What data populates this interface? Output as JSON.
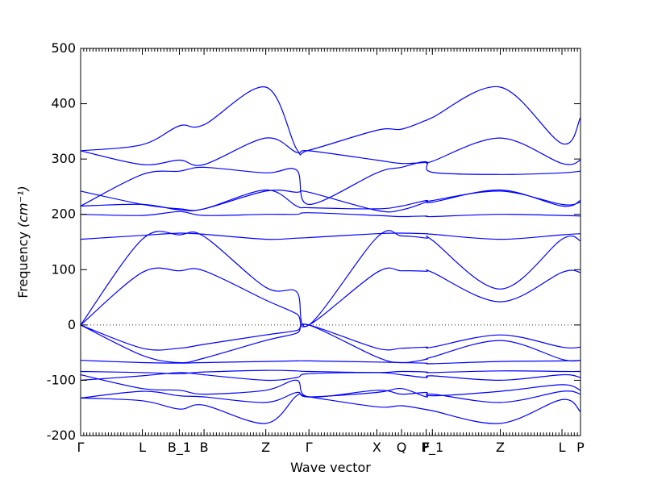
{
  "chart_data": {
    "type": "line",
    "title": "",
    "xlabel": "Wave vector",
    "ylabel": "Frequency",
    "ylabel_unit": "(cm⁻¹)",
    "ylim": [
      -200,
      500
    ],
    "yticks": [
      -200,
      -100,
      0,
      100,
      200,
      300,
      400,
      500
    ],
    "zero_line": true,
    "legend": "none",
    "line_color": "#0000ff",
    "high_symmetry_points": [
      {
        "label": "Γ",
        "pos": 0
      },
      {
        "label": "L",
        "pos": 1
      },
      {
        "label": "B_1",
        "pos": 1.6
      },
      {
        "label": "B",
        "pos": 2
      },
      {
        "label": "Z",
        "pos": 3
      },
      {
        "label": "Γ",
        "pos": 3.7
      },
      {
        "label": "X",
        "pos": 4.8
      },
      {
        "label": "Q",
        "pos": 5.2
      },
      {
        "label": "F",
        "pos": 5.6
      },
      {
        "label": "P_1",
        "pos": 5.7
      },
      {
        "label": "Z",
        "pos": 6.8
      },
      {
        "label": "L",
        "pos": 7.8
      },
      {
        "label": "P",
        "pos": 8.1
      }
    ],
    "x_range": [
      0,
      8.1
    ],
    "series": [
      {
        "x": [
          0,
          1,
          1.6,
          2,
          3,
          3.5,
          3.7,
          4.8,
          5.2,
          5.6,
          5.7,
          6.8,
          7.8,
          8.1
        ],
        "values": [
          -132,
          -137,
          -152,
          -145,
          -178,
          -128,
          -130,
          -148,
          -146,
          -153,
          -155,
          -178,
          -135,
          -157
        ]
      },
      {
        "x": [
          0,
          1,
          1.6,
          2,
          3,
          3.5,
          3.7,
          4.8,
          5.2,
          5.6,
          5.7,
          6.8,
          7.8,
          8.1
        ],
        "values": [
          -132,
          -120,
          -128,
          -130,
          -140,
          -122,
          -130,
          -122,
          -115,
          -130,
          -125,
          -140,
          -120,
          -125
        ]
      },
      {
        "x": [
          0,
          1,
          1.6,
          2,
          3,
          3.5,
          3.7,
          4.8,
          5.2,
          5.6,
          5.7,
          6.8,
          7.8,
          8.1
        ],
        "values": [
          -90,
          -115,
          -118,
          -125,
          -118,
          -100,
          -130,
          -118,
          -125,
          -122,
          -128,
          -120,
          -108,
          -118
        ]
      },
      {
        "x": [
          0,
          1,
          1.6,
          2,
          3,
          3.5,
          3.7,
          4.8,
          5.2,
          5.6,
          5.7,
          6.8,
          7.8,
          8.1
        ],
        "values": [
          -100,
          -92,
          -86,
          -90,
          -100,
          -95,
          -88,
          -86,
          -90,
          -95,
          -92,
          -100,
          -90,
          -95
        ]
      },
      {
        "x": [
          0,
          1,
          1.6,
          2,
          3,
          3.5,
          3.7,
          4.8,
          5.2,
          5.6,
          5.7,
          6.8,
          7.8,
          8.1
        ],
        "values": [
          -84,
          -86,
          -88,
          -85,
          -82,
          -83,
          -84,
          -86,
          -84,
          -85,
          -86,
          -83,
          -84,
          -84
        ]
      },
      {
        "x": [
          0,
          1,
          1.6,
          2,
          3,
          3.5,
          3.7,
          4.8,
          5.2,
          5.6,
          5.7,
          6.8,
          7.8,
          8.1
        ],
        "values": [
          -64,
          -68,
          -69,
          -68,
          -66,
          -65,
          -65,
          -67,
          -68,
          -69,
          -70,
          -66,
          -65,
          -64
        ]
      },
      {
        "x": [
          0,
          1,
          1.6,
          2,
          3,
          3.5,
          3.7,
          4.8,
          5.2,
          5.6,
          5.7,
          6.8,
          7.8,
          8.1
        ],
        "values": [
          0,
          -42,
          -42,
          -35,
          -18,
          -10,
          0,
          -42,
          -42,
          -40,
          -40,
          -18,
          -40,
          -40
        ]
      },
      {
        "x": [
          0,
          1,
          1.6,
          2,
          3,
          3.5,
          3.7,
          4.8,
          5.2,
          5.6,
          5.7,
          6.8,
          7.8,
          8.1
        ],
        "values": [
          0,
          -55,
          -68,
          -60,
          -28,
          -15,
          0,
          -58,
          -68,
          -62,
          -58,
          -28,
          -62,
          -64
        ]
      },
      {
        "x": [
          0,
          1,
          1.6,
          2,
          3,
          3.5,
          3.7,
          4.8,
          5.2,
          5.6,
          5.7,
          6.8,
          7.8,
          8.1
        ],
        "values": [
          0,
          95,
          98,
          98,
          45,
          20,
          0,
          95,
          98,
          97,
          95,
          42,
          95,
          95
        ]
      },
      {
        "x": [
          0,
          1,
          1.6,
          2,
          3,
          3.5,
          3.7,
          4.8,
          5.2,
          5.6,
          5.7,
          6.8,
          7.8,
          8.1
        ],
        "values": [
          0,
          155,
          163,
          160,
          68,
          60,
          0,
          158,
          161,
          157,
          153,
          65,
          155,
          152
        ]
      },
      {
        "x": [
          0,
          1,
          1.6,
          2,
          3,
          3.5,
          3.7,
          4.8,
          5.2,
          5.6,
          5.7,
          6.8,
          7.8,
          8.1
        ],
        "values": [
          155,
          162,
          166,
          164,
          155,
          157,
          158,
          165,
          166,
          165,
          164,
          155,
          163,
          165
        ]
      },
      {
        "x": [
          0,
          1,
          1.6,
          2,
          3,
          3.5,
          3.7,
          4.8,
          5.2,
          5.6,
          5.7,
          6.8,
          7.8,
          8.1
        ],
        "values": [
          200,
          198,
          205,
          198,
          200,
          200,
          203,
          198,
          196,
          197,
          196,
          200,
          198,
          197
        ]
      },
      {
        "x": [
          0,
          1,
          1.6,
          2,
          3,
          3.5,
          3.7,
          4.8,
          5.2,
          5.6,
          5.7,
          6.8,
          7.8,
          8.1
        ],
        "values": [
          215,
          218,
          208,
          210,
          242,
          240,
          240,
          207,
          208,
          222,
          225,
          242,
          218,
          222
        ]
      },
      {
        "x": [
          0,
          1,
          1.6,
          2,
          3,
          3.5,
          3.7,
          4.8,
          5.2,
          5.6,
          5.7,
          6.8,
          7.8,
          8.1
        ],
        "values": [
          242,
          218,
          210,
          210,
          244,
          215,
          212,
          210,
          215,
          225,
          222,
          244,
          215,
          225
        ]
      },
      {
        "x": [
          0,
          1,
          1.6,
          2,
          3,
          3.5,
          3.7,
          4.8,
          5.2,
          5.6,
          5.7,
          6.8,
          7.8,
          8.1
        ],
        "values": [
          215,
          272,
          278,
          285,
          275,
          280,
          218,
          275,
          285,
          295,
          276,
          272,
          275,
          278
        ]
      },
      {
        "x": [
          0,
          1,
          1.6,
          2,
          3,
          3.5,
          3.7,
          4.8,
          5.2,
          5.6,
          5.7,
          6.8,
          7.8,
          8.1
        ],
        "values": [
          315,
          290,
          298,
          290,
          338,
          312,
          315,
          298,
          292,
          294,
          296,
          338,
          292,
          298
        ]
      },
      {
        "x": [
          0,
          1,
          1.6,
          2,
          3,
          3.5,
          3.7,
          4.8,
          5.2,
          5.6,
          5.7,
          6.8,
          7.8,
          8.1
        ],
        "values": [
          315,
          326,
          360,
          362,
          430,
          318,
          316,
          352,
          354,
          370,
          375,
          430,
          328,
          375
        ]
      }
    ]
  }
}
